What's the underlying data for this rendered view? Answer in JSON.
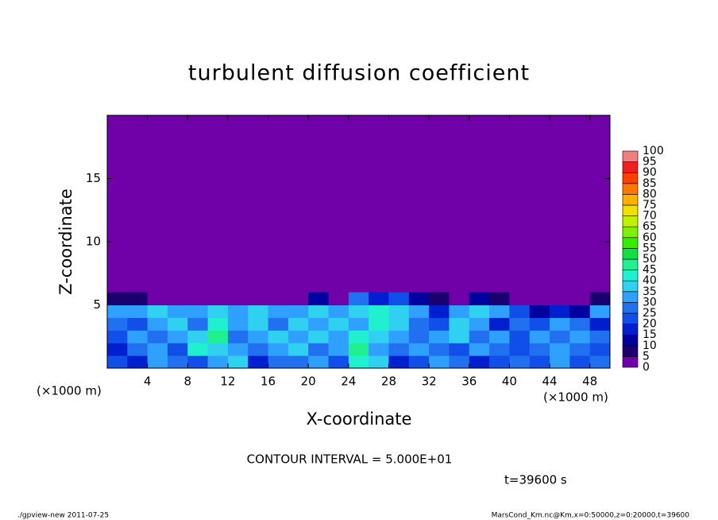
{
  "chart_data": {
    "type": "heatmap",
    "title": "turbulent diffusion coefficient",
    "x_label": "X-coordinate",
    "y_label": "Z-coordinate",
    "x_unit": "(×1000 m)",
    "y_unit": "(×1000 m)",
    "xlim": [
      0,
      50
    ],
    "ylim": [
      0,
      20
    ],
    "xticks": [
      4,
      8,
      12,
      16,
      20,
      24,
      28,
      32,
      36,
      40,
      44,
      48
    ],
    "yticks": [
      5,
      10,
      15
    ],
    "x_edges": [
      0,
      2,
      4,
      6,
      8,
      10,
      12,
      14,
      16,
      18,
      20,
      22,
      24,
      26,
      28,
      30,
      32,
      34,
      36,
      38,
      40,
      42,
      44,
      46,
      48,
      50
    ],
    "z_edges": [
      0,
      1,
      2,
      3,
      4,
      5,
      6
    ],
    "values": [
      [
        20,
        15,
        30,
        25,
        20,
        30,
        35,
        15,
        25,
        25,
        30,
        20,
        40,
        35,
        15,
        20,
        30,
        25,
        15,
        20,
        25,
        20,
        30,
        20,
        25
      ],
      [
        15,
        25,
        30,
        20,
        40,
        35,
        30,
        25,
        30,
        35,
        25,
        30,
        45,
        30,
        25,
        30,
        25,
        20,
        30,
        25,
        20,
        25,
        30,
        25,
        20
      ],
      [
        20,
        30,
        25,
        30,
        35,
        45,
        25,
        30,
        35,
        30,
        35,
        30,
        40,
        35,
        30,
        25,
        30,
        35,
        25,
        30,
        20,
        30,
        25,
        30,
        25
      ],
      [
        25,
        20,
        30,
        35,
        25,
        40,
        30,
        35,
        25,
        35,
        30,
        35,
        30,
        40,
        35,
        25,
        20,
        35,
        30,
        15,
        25,
        20,
        30,
        25,
        15
      ],
      [
        30,
        30,
        35,
        30,
        30,
        35,
        30,
        35,
        30,
        30,
        35,
        30,
        35,
        40,
        35,
        30,
        15,
        30,
        35,
        30,
        20,
        10,
        15,
        10,
        30
      ],
      [
        5,
        5,
        0,
        0,
        0,
        0,
        0,
        0,
        0,
        0,
        10,
        0,
        25,
        15,
        20,
        10,
        5,
        0,
        10,
        5,
        0,
        0,
        0,
        0,
        5
      ]
    ],
    "levels": [
      0,
      5,
      10,
      15,
      20,
      25,
      30,
      35,
      40,
      45,
      50,
      55,
      60,
      65,
      70,
      75,
      80,
      85,
      90,
      95,
      100
    ],
    "colors": [
      "#7000a8",
      "#1a0070",
      "#0000a0",
      "#0020d0",
      "#1050e8",
      "#2070f0",
      "#30a0ff",
      "#30d0f0",
      "#20f0d0",
      "#20f090",
      "#10e040",
      "#30f000",
      "#80f000",
      "#c0f000",
      "#f0e000",
      "#ffb000",
      "#ff7800",
      "#ff4000",
      "#f02020",
      "#f08080"
    ],
    "contour_interval": "CONTOUR INTERVAL = 5.000E+01",
    "time_label": "t=39600 s",
    "footer_left": "./gpview-new  2011-07-25",
    "footer_right": "MarsCond_Km.nc@Km,x=0:50000,z=0:20000,t=39600"
  }
}
